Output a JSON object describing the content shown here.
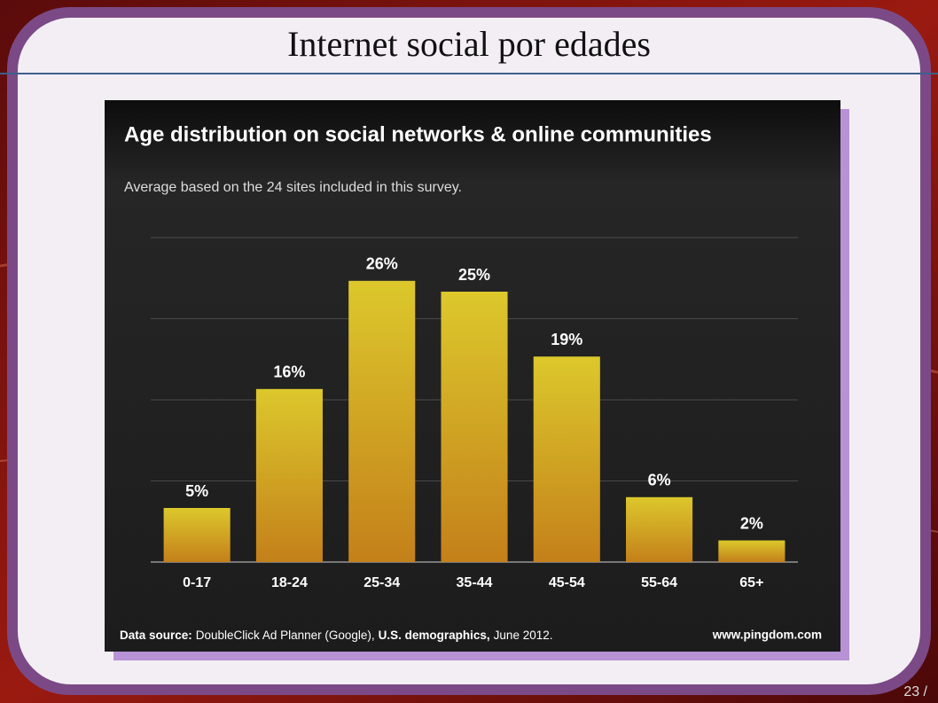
{
  "slide_title": "Internet social por edades",
  "page_number": "23 /",
  "chart_data": {
    "type": "bar",
    "title": "Age distribution on social networks & online communities",
    "subtitle": "Average based on the 24 sites included in this survey.",
    "categories": [
      "0-17",
      "18-24",
      "25-34",
      "35-44",
      "45-54",
      "55-64",
      "65+"
    ],
    "values": [
      5,
      16,
      26,
      25,
      19,
      6,
      2
    ],
    "value_labels": [
      "5%",
      "16%",
      "26%",
      "25%",
      "19%",
      "6%",
      "2%"
    ],
    "ylim": [
      0,
      30
    ],
    "yticks": [
      0,
      7.5,
      15,
      22.5,
      30
    ],
    "grid": true,
    "source": [
      {
        "text": "Data source:",
        "bold": true
      },
      {
        "text": "DoubleClick Ad Planner (Google),",
        "bold": false
      },
      {
        "text": "U.S. demographics,",
        "bold": true
      },
      {
        "text": "June 2012.",
        "bold": false
      }
    ],
    "credit": "www.pingdom.com"
  }
}
